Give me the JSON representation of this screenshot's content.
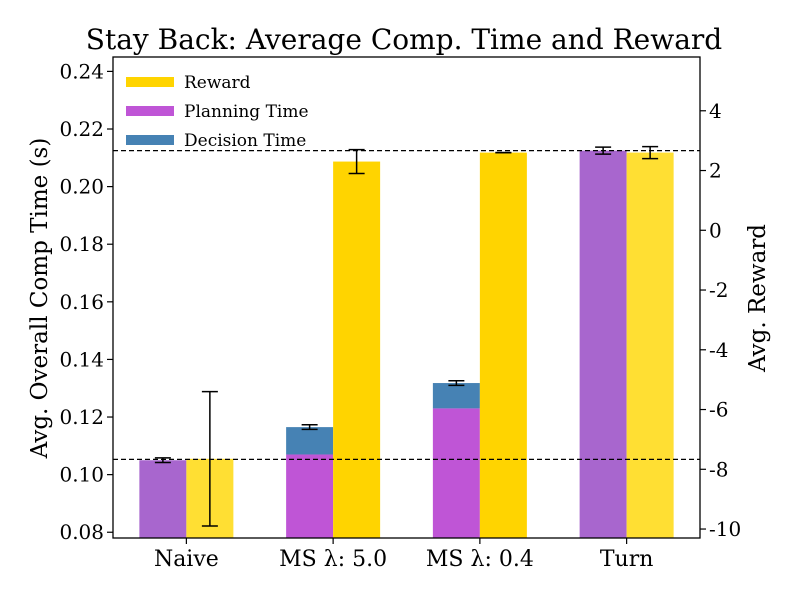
{
  "chart_data": {
    "type": "bar",
    "title": "Stay Back: Average Comp. Time and Reward",
    "ylabel_left": "Avg. Overall Comp Time (s)",
    "ylabel_right": "Avg. Reward",
    "categories": [
      "Naive",
      "MS λ: 5.0",
      "MS λ: 0.4",
      "Turn"
    ],
    "ylim_left": [
      0.078,
      0.245
    ],
    "yticks_left": [
      "0.08",
      "0.10",
      "0.12",
      "0.14",
      "0.16",
      "0.18",
      "0.20",
      "0.22",
      "0.24"
    ],
    "ylim_right": [
      -10.3,
      5.8
    ],
    "yticks_right": [
      "-10",
      "-8",
      "-6",
      "-4",
      "-2",
      "0",
      "2",
      "4"
    ],
    "legend_position": "top-left",
    "legend": [
      {
        "label": "Reward",
        "color": "#FFD400"
      },
      {
        "label": "Planning Time",
        "color": "#BF55D6"
      },
      {
        "label": "Decision Time",
        "color": "#4682B4"
      }
    ],
    "planning_time": [
      0.105,
      0.107,
      0.123,
      0.2125
    ],
    "decision_time": [
      0.0,
      0.0095,
      0.0088,
      0.0
    ],
    "comp_time_error": [
      0.0008,
      0.0008,
      0.0008,
      0.0012
    ],
    "reward": [
      -7.65,
      2.3,
      2.6,
      2.6
    ],
    "reward_error": [
      2.25,
      0.4,
      0.0,
      0.2
    ],
    "reference_lines_left": [
      0.1053,
      0.2125
    ],
    "colors": {
      "reward": "#FFD400",
      "planning": "#BF55D6",
      "decision": "#4682B4",
      "planning_muted": "#A866CE",
      "reward_muted": "#FFDF33"
    }
  }
}
